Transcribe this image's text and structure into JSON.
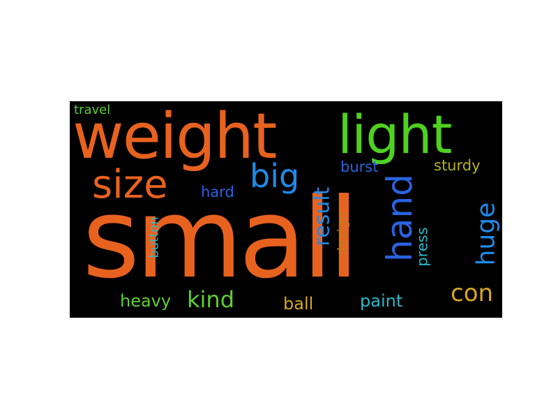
{
  "palette": {
    "orange": "#e8621f",
    "green": "#4fd11f",
    "blue": "#1f8ae8",
    "royal": "#2a63e0",
    "olive": "#b8b21f",
    "teal": "#2ab8c8",
    "gold": "#d8a81f",
    "brown": "#c8781f",
    "lime": "#5cd12f",
    "background": "#000000"
  },
  "words": [
    {
      "id": "small",
      "text": "small",
      "color": "orange"
    },
    {
      "id": "weight",
      "text": "weight",
      "color": "orange"
    },
    {
      "id": "light",
      "text": "light",
      "color": "green"
    },
    {
      "id": "size",
      "text": "size",
      "color": "orange"
    },
    {
      "id": "big",
      "text": "big",
      "color": "blue"
    },
    {
      "id": "hand",
      "text": "hand",
      "color": "royal"
    },
    {
      "id": "huge",
      "text": "huge",
      "color": "blue"
    },
    {
      "id": "result",
      "text": "result",
      "color": "blue"
    },
    {
      "id": "kind",
      "text": "kind",
      "color": "lime"
    },
    {
      "id": "con",
      "text": "con",
      "color": "gold"
    },
    {
      "id": "heavy",
      "text": "heavy",
      "color": "lime"
    },
    {
      "id": "ball",
      "text": "ball",
      "color": "gold"
    },
    {
      "id": "paint",
      "text": "paint",
      "color": "teal"
    },
    {
      "id": "burst",
      "text": "burst",
      "color": "royal"
    },
    {
      "id": "sturdy",
      "text": "sturdy",
      "color": "olive"
    },
    {
      "id": "hard",
      "text": "hard",
      "color": "royal"
    },
    {
      "id": "press",
      "text": "press",
      "color": "teal"
    },
    {
      "id": "design",
      "text": "design",
      "color": "brown"
    },
    {
      "id": "button",
      "text": "button",
      "color": "teal"
    },
    {
      "id": "travel",
      "text": "travel",
      "color": "lime"
    }
  ]
}
